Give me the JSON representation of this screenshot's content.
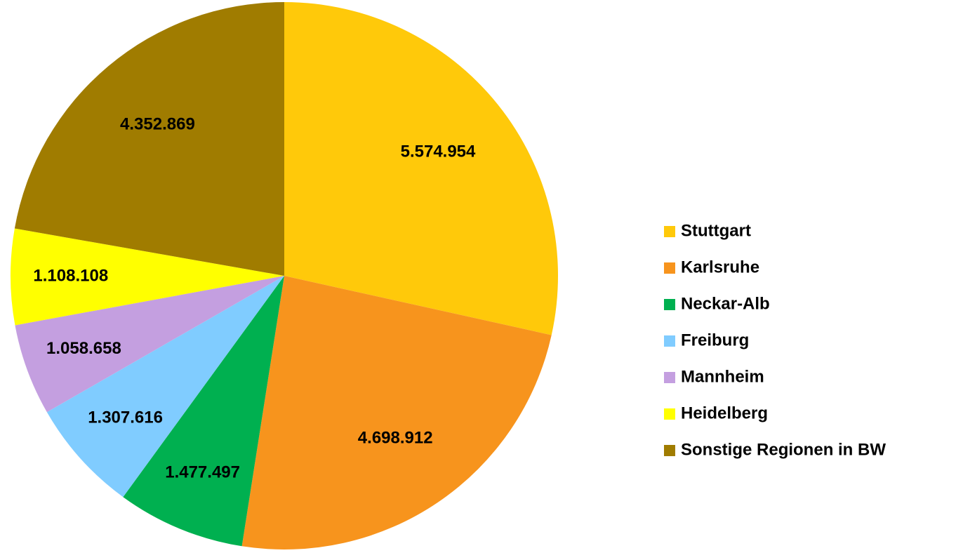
{
  "chart_data": {
    "type": "pie",
    "categories": [
      "Stuttgart",
      "Karlsruhe",
      "Neckar-Alb",
      "Freiburg",
      "Mannheim",
      "Heidelberg",
      "Sonstige Regionen in BW"
    ],
    "values": [
      5574954,
      4698912,
      1477497,
      1307616,
      1058658,
      1108108,
      4352869
    ],
    "value_labels": [
      "5.574.954",
      "4.698.912",
      "1.477.497",
      "1.307.616",
      "1.058.658",
      "1.108.108",
      "4.352.869"
    ],
    "colors": [
      "#ffc90a",
      "#f7941d",
      "#00b050",
      "#80ccff",
      "#c49fe0",
      "#ffff00",
      "#a07c00"
    ],
    "legend": "right"
  }
}
